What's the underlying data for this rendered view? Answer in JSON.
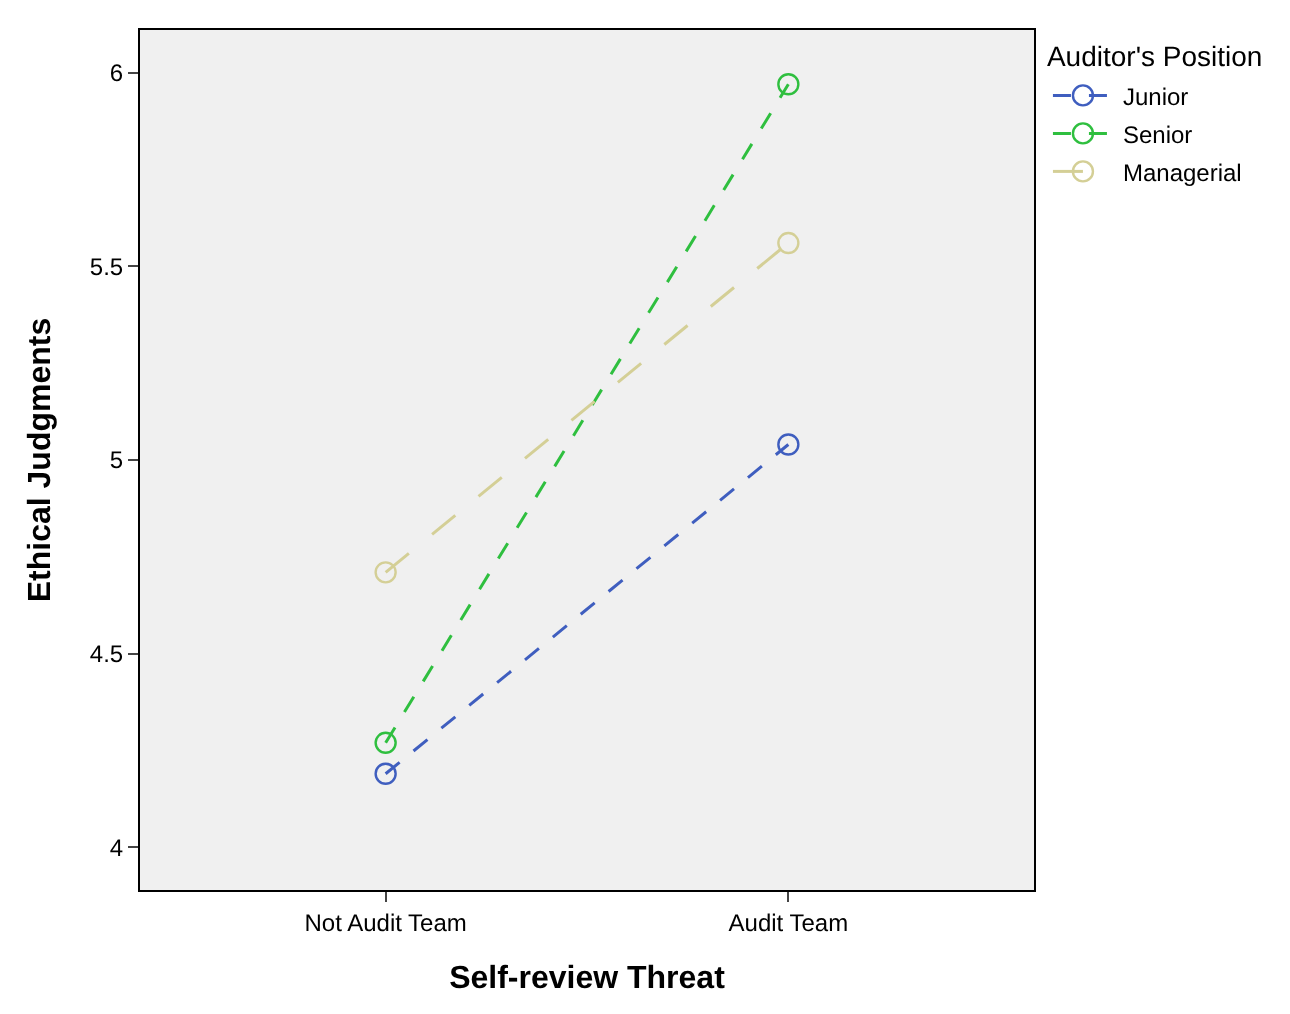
{
  "chart_data": {
    "type": "line",
    "xlabel": "Self-review Threat",
    "ylabel": "Ethical Judgments",
    "legend_title": "Auditor's Position",
    "categories": [
      "Not Audit Team",
      "Audit Team"
    ],
    "series": [
      {
        "name": "Junior",
        "color": "#3f5ebf",
        "values": [
          4.19,
          5.04
        ],
        "line_style": "dashed"
      },
      {
        "name": "Senior",
        "color": "#2fbf3f",
        "values": [
          4.27,
          5.97
        ],
        "line_style": "dashed"
      },
      {
        "name": "Managerial",
        "color": "#d4cf96",
        "values": [
          4.71,
          5.56
        ],
        "line_style": "dashed"
      }
    ],
    "ylim": [
      3.89,
      6.11
    ],
    "yticks": [
      4,
      4.5,
      5,
      5.5,
      6
    ],
    "grid": false,
    "legend": "top right",
    "marker": "circle"
  }
}
